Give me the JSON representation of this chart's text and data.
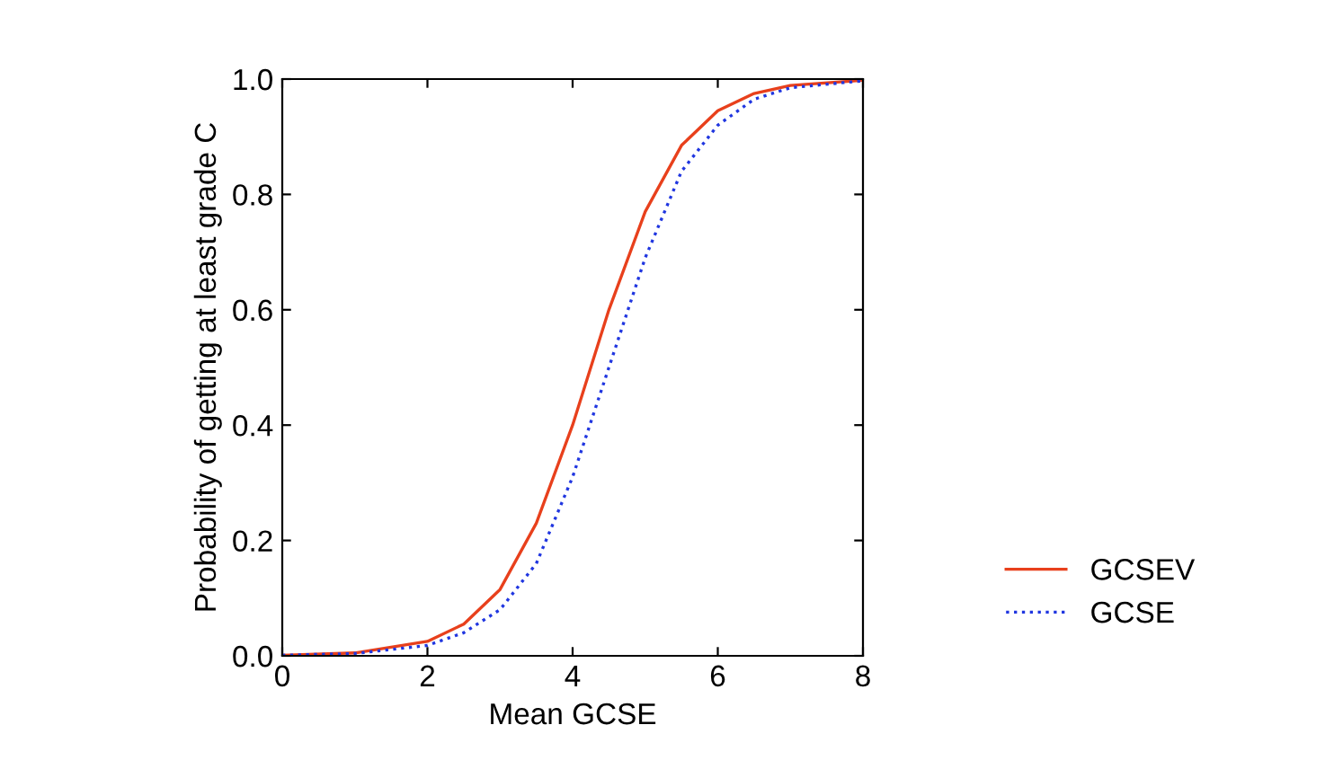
{
  "chart_data": {
    "type": "line",
    "xlabel": "Mean GCSE",
    "ylabel": "Probability of getting at least grade C",
    "x": [
      0,
      1,
      2,
      2.5,
      3,
      3.5,
      4,
      4.5,
      5,
      5.5,
      6,
      6.5,
      7,
      8
    ],
    "series": [
      {
        "name": "GCSEV",
        "color": "#e8401c",
        "line_style": "solid",
        "values": [
          0.001,
          0.005,
          0.025,
          0.055,
          0.115,
          0.23,
          0.4,
          0.6,
          0.77,
          0.885,
          0.945,
          0.975,
          0.989,
          0.998
        ]
      },
      {
        "name": "GCSE",
        "color": "#2036e0",
        "line_style": "dotted",
        "values": [
          0.001,
          0.004,
          0.018,
          0.04,
          0.08,
          0.16,
          0.31,
          0.5,
          0.69,
          0.84,
          0.92,
          0.965,
          0.985,
          0.997
        ]
      }
    ],
    "xlim": [
      0,
      8
    ],
    "ylim": [
      0,
      1
    ],
    "xticks": [
      0,
      2,
      4,
      6,
      8
    ],
    "yticks": [
      {
        "value": 0,
        "label": "0.0"
      },
      {
        "value": 0.2,
        "label": "0.2"
      },
      {
        "value": 0.4,
        "label": "0.4"
      },
      {
        "value": 0.6,
        "label": "0.6"
      },
      {
        "value": 0.8,
        "label": "0.8"
      },
      {
        "value": 1,
        "label": "1.0"
      }
    ],
    "grid": false,
    "legend": "bottom right",
    "marker": "none"
  }
}
